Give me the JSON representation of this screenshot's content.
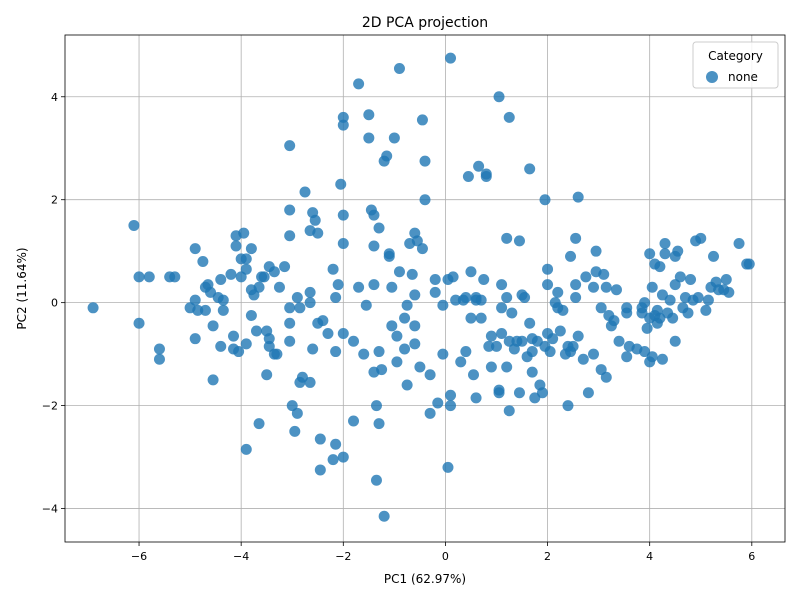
{
  "chart_data": {
    "type": "scatter",
    "title": "2D PCA projection",
    "xlabel": "PC1 (62.97%)",
    "ylabel": "PC2 (11.64%)",
    "xlim": [
      -7.45,
      6.65
    ],
    "ylim": [
      -4.65,
      5.2
    ],
    "xticks": [
      -6,
      -4,
      -2,
      0,
      2,
      4,
      6
    ],
    "yticks": [
      -4,
      -2,
      0,
      2,
      4
    ],
    "grid": true,
    "legend": {
      "title": "Category",
      "position": "top-right"
    },
    "series": [
      {
        "name": "none",
        "color": "#1f77b4",
        "points": [
          [
            -6.9,
            -0.1
          ],
          [
            -6.1,
            1.5
          ],
          [
            -6.0,
            0.5
          ],
          [
            -6.0,
            -0.4
          ],
          [
            -5.8,
            0.5
          ],
          [
            -5.6,
            -0.9
          ],
          [
            -5.6,
            -1.1
          ],
          [
            -5.4,
            0.5
          ],
          [
            -5.3,
            0.5
          ],
          [
            -5.0,
            -0.1
          ],
          [
            -4.9,
            0.05
          ],
          [
            -4.9,
            -0.7
          ],
          [
            -4.9,
            1.05
          ],
          [
            -4.85,
            -0.15
          ],
          [
            -4.75,
            0.8
          ],
          [
            -4.7,
            -0.15
          ],
          [
            -4.7,
            0.3
          ],
          [
            -4.65,
            0.35
          ],
          [
            -4.6,
            0.2
          ],
          [
            -4.55,
            -1.5
          ],
          [
            -4.55,
            -0.45
          ],
          [
            -4.45,
            0.1
          ],
          [
            -4.4,
            0.45
          ],
          [
            -4.35,
            0.05
          ],
          [
            -4.35,
            -0.15
          ],
          [
            -4.4,
            -0.85
          ],
          [
            -4.2,
            0.55
          ],
          [
            -4.15,
            -0.65
          ],
          [
            -4.15,
            -0.9
          ],
          [
            -4.1,
            1.1
          ],
          [
            -4.1,
            1.3
          ],
          [
            -4.05,
            -0.95
          ],
          [
            -4.0,
            0.85
          ],
          [
            -4.0,
            0.5
          ],
          [
            -3.95,
            1.35
          ],
          [
            -3.9,
            0.85
          ],
          [
            -3.9,
            0.65
          ],
          [
            -3.9,
            -0.8
          ],
          [
            -3.9,
            -2.85
          ],
          [
            -3.8,
            -0.25
          ],
          [
            -3.8,
            1.05
          ],
          [
            -3.8,
            0.25
          ],
          [
            -3.75,
            0.15
          ],
          [
            -3.7,
            -0.55
          ],
          [
            -3.65,
            0.3
          ],
          [
            -3.65,
            -2.35
          ],
          [
            -3.6,
            0.5
          ],
          [
            -3.55,
            0.5
          ],
          [
            -3.5,
            -1.4
          ],
          [
            -3.5,
            -0.55
          ],
          [
            -3.45,
            0.7
          ],
          [
            -3.45,
            -0.7
          ],
          [
            -3.45,
            -0.85
          ],
          [
            -3.35,
            -1.0
          ],
          [
            -3.35,
            0.6
          ],
          [
            -3.3,
            -1.0
          ],
          [
            -3.25,
            0.3
          ],
          [
            -3.15,
            0.7
          ],
          [
            -3.05,
            -0.1
          ],
          [
            -3.05,
            -0.4
          ],
          [
            -3.05,
            -0.75
          ],
          [
            -3.05,
            1.3
          ],
          [
            -3.05,
            1.8
          ],
          [
            -3.05,
            3.05
          ],
          [
            -3.0,
            -2.0
          ],
          [
            -2.95,
            -2.5
          ],
          [
            -2.9,
            0.1
          ],
          [
            -2.9,
            -2.15
          ],
          [
            -2.85,
            -0.1
          ],
          [
            -2.85,
            -1.55
          ],
          [
            -2.8,
            -1.45
          ],
          [
            -2.75,
            2.15
          ],
          [
            -2.65,
            -1.55
          ],
          [
            -2.65,
            0.2
          ],
          [
            -2.65,
            0.0
          ],
          [
            -2.65,
            1.4
          ],
          [
            -2.6,
            1.75
          ],
          [
            -2.6,
            -0.9
          ],
          [
            -2.55,
            1.6
          ],
          [
            -2.5,
            1.35
          ],
          [
            -2.5,
            -0.4
          ],
          [
            -2.45,
            -2.65
          ],
          [
            -2.45,
            -3.25
          ],
          [
            -2.4,
            -0.35
          ],
          [
            -2.3,
            -0.6
          ],
          [
            -2.2,
            0.65
          ],
          [
            -2.2,
            -3.05
          ],
          [
            -2.15,
            -2.75
          ],
          [
            -2.15,
            -0.95
          ],
          [
            -2.15,
            0.1
          ],
          [
            -2.1,
            0.35
          ],
          [
            -2.05,
            2.3
          ],
          [
            -2.0,
            3.6
          ],
          [
            -2.0,
            3.45
          ],
          [
            -2.0,
            1.7
          ],
          [
            -2.0,
            1.15
          ],
          [
            -2.0,
            -0.6
          ],
          [
            -2.0,
            -3.0
          ],
          [
            -1.8,
            -0.75
          ],
          [
            -1.8,
            -2.3
          ],
          [
            -1.7,
            4.25
          ],
          [
            -1.7,
            0.3
          ],
          [
            -1.6,
            -1.0
          ],
          [
            -1.55,
            -0.05
          ],
          [
            -1.5,
            3.65
          ],
          [
            -1.5,
            3.2
          ],
          [
            -1.45,
            1.8
          ],
          [
            -1.4,
            1.7
          ],
          [
            -1.4,
            1.1
          ],
          [
            -1.4,
            0.35
          ],
          [
            -1.4,
            -1.35
          ],
          [
            -1.35,
            -2.0
          ],
          [
            -1.35,
            -3.45
          ],
          [
            -1.3,
            -2.35
          ],
          [
            -1.3,
            1.45
          ],
          [
            -1.3,
            -0.95
          ],
          [
            -1.25,
            -1.3
          ],
          [
            -1.2,
            2.75
          ],
          [
            -1.2,
            -4.15
          ],
          [
            -1.15,
            2.85
          ],
          [
            -1.1,
            0.95
          ],
          [
            -1.1,
            0.9
          ],
          [
            -1.05,
            0.3
          ],
          [
            -1.05,
            -0.45
          ],
          [
            -1.0,
            3.2
          ],
          [
            -0.95,
            -1.15
          ],
          [
            -0.95,
            -0.65
          ],
          [
            -0.9,
            0.6
          ],
          [
            -0.9,
            4.55
          ],
          [
            -0.8,
            -0.3
          ],
          [
            -0.8,
            -0.9
          ],
          [
            -0.75,
            -0.05
          ],
          [
            -0.75,
            -1.6
          ],
          [
            -0.7,
            1.15
          ],
          [
            -0.65,
            0.55
          ],
          [
            -0.6,
            -0.45
          ],
          [
            -0.6,
            -0.8
          ],
          [
            -0.6,
            0.15
          ],
          [
            -0.6,
            1.35
          ],
          [
            -0.55,
            1.2
          ],
          [
            -0.5,
            -1.25
          ],
          [
            -0.45,
            1.05
          ],
          [
            -0.45,
            3.55
          ],
          [
            -0.4,
            2.75
          ],
          [
            -0.4,
            2.0
          ],
          [
            -0.3,
            -1.4
          ],
          [
            -0.3,
            -2.15
          ],
          [
            -0.2,
            0.2
          ],
          [
            -0.2,
            0.45
          ],
          [
            -0.15,
            -1.95
          ],
          [
            -0.05,
            -0.05
          ],
          [
            -0.05,
            -1.0
          ],
          [
            0.05,
            -3.2
          ],
          [
            0.05,
            0.45
          ],
          [
            0.1,
            4.75
          ],
          [
            0.1,
            -1.8
          ],
          [
            0.1,
            -2.0
          ],
          [
            0.15,
            0.5
          ],
          [
            0.2,
            0.05
          ],
          [
            0.3,
            -1.15
          ],
          [
            0.35,
            0.05
          ],
          [
            0.4,
            0.1
          ],
          [
            0.4,
            -0.95
          ],
          [
            0.45,
            2.45
          ],
          [
            0.5,
            0.6
          ],
          [
            0.5,
            -0.3
          ],
          [
            0.55,
            -1.4
          ],
          [
            0.6,
            0.1
          ],
          [
            0.6,
            0.05
          ],
          [
            0.6,
            -1.85
          ],
          [
            0.65,
            2.65
          ],
          [
            0.7,
            0.05
          ],
          [
            0.7,
            -0.3
          ],
          [
            0.75,
            0.45
          ],
          [
            0.8,
            2.45
          ],
          [
            0.8,
            2.5
          ],
          [
            0.85,
            -0.85
          ],
          [
            0.9,
            -0.65
          ],
          [
            0.9,
            -1.25
          ],
          [
            1.0,
            -0.85
          ],
          [
            1.05,
            4.0
          ],
          [
            1.05,
            -1.7
          ],
          [
            1.05,
            -1.75
          ],
          [
            1.1,
            0.35
          ],
          [
            1.1,
            -0.1
          ],
          [
            1.1,
            -0.6
          ],
          [
            1.2,
            -1.25
          ],
          [
            1.2,
            1.25
          ],
          [
            1.2,
            0.1
          ],
          [
            1.25,
            3.6
          ],
          [
            1.25,
            -0.75
          ],
          [
            1.25,
            -2.1
          ],
          [
            1.3,
            -0.2
          ],
          [
            1.35,
            -0.9
          ],
          [
            1.4,
            -0.75
          ],
          [
            1.45,
            1.2
          ],
          [
            1.45,
            -1.75
          ],
          [
            1.5,
            -0.75
          ],
          [
            1.5,
            0.15
          ],
          [
            1.55,
            0.1
          ],
          [
            1.6,
            -1.05
          ],
          [
            1.65,
            2.6
          ],
          [
            1.65,
            -0.4
          ],
          [
            1.7,
            -0.7
          ],
          [
            1.7,
            -0.95
          ],
          [
            1.7,
            -1.35
          ],
          [
            1.75,
            -1.85
          ],
          [
            1.8,
            -0.75
          ],
          [
            1.85,
            -1.6
          ],
          [
            1.9,
            -1.75
          ],
          [
            1.95,
            -0.85
          ],
          [
            1.95,
            2.0
          ],
          [
            2.0,
            -0.6
          ],
          [
            2.0,
            0.35
          ],
          [
            2.0,
            0.65
          ],
          [
            2.05,
            -0.95
          ],
          [
            2.1,
            -0.7
          ],
          [
            2.15,
            0.0
          ],
          [
            2.2,
            0.2
          ],
          [
            2.2,
            -0.1
          ],
          [
            2.25,
            -0.55
          ],
          [
            2.3,
            -0.15
          ],
          [
            2.35,
            -1.0
          ],
          [
            2.4,
            -0.85
          ],
          [
            2.4,
            -2.0
          ],
          [
            2.45,
            0.9
          ],
          [
            2.45,
            -0.95
          ],
          [
            2.5,
            -0.85
          ],
          [
            2.55,
            1.25
          ],
          [
            2.55,
            0.35
          ],
          [
            2.55,
            0.1
          ],
          [
            2.6,
            2.05
          ],
          [
            2.6,
            -0.65
          ],
          [
            2.7,
            -1.1
          ],
          [
            2.75,
            0.5
          ],
          [
            2.8,
            -1.75
          ],
          [
            2.9,
            -1.0
          ],
          [
            2.9,
            0.3
          ],
          [
            2.95,
            0.6
          ],
          [
            2.95,
            1.0
          ],
          [
            3.05,
            -1.3
          ],
          [
            3.05,
            -0.1
          ],
          [
            3.1,
            0.55
          ],
          [
            3.15,
            0.3
          ],
          [
            3.15,
            -1.45
          ],
          [
            3.2,
            -0.25
          ],
          [
            3.25,
            -0.45
          ],
          [
            3.3,
            -0.35
          ],
          [
            3.35,
            0.25
          ],
          [
            3.4,
            -0.75
          ],
          [
            3.55,
            -0.2
          ],
          [
            3.55,
            -0.1
          ],
          [
            3.55,
            -1.05
          ],
          [
            3.6,
            -0.85
          ],
          [
            3.75,
            -0.9
          ],
          [
            3.85,
            -0.2
          ],
          [
            3.85,
            -0.1
          ],
          [
            3.9,
            -0.95
          ],
          [
            3.9,
            0.0
          ],
          [
            3.95,
            -0.5
          ],
          [
            4.0,
            -1.15
          ],
          [
            4.0,
            -0.3
          ],
          [
            4.0,
            0.95
          ],
          [
            4.05,
            0.3
          ],
          [
            4.05,
            -1.05
          ],
          [
            4.1,
            0.75
          ],
          [
            4.1,
            -0.25
          ],
          [
            4.15,
            -0.4
          ],
          [
            4.15,
            -0.15
          ],
          [
            4.2,
            -0.3
          ],
          [
            4.2,
            0.7
          ],
          [
            4.25,
            0.15
          ],
          [
            4.25,
            -1.1
          ],
          [
            4.3,
            0.95
          ],
          [
            4.3,
            1.15
          ],
          [
            4.35,
            -0.2
          ],
          [
            4.4,
            0.05
          ],
          [
            4.45,
            -0.3
          ],
          [
            4.5,
            0.35
          ],
          [
            4.5,
            0.9
          ],
          [
            4.5,
            -0.75
          ],
          [
            4.55,
            1.0
          ],
          [
            4.6,
            0.5
          ],
          [
            4.65,
            -0.1
          ],
          [
            4.7,
            0.1
          ],
          [
            4.75,
            -0.2
          ],
          [
            4.8,
            0.45
          ],
          [
            4.85,
            0.05
          ],
          [
            4.9,
            1.2
          ],
          [
            4.95,
            0.1
          ],
          [
            5.0,
            1.25
          ],
          [
            5.1,
            -0.15
          ],
          [
            5.15,
            0.05
          ],
          [
            5.2,
            0.3
          ],
          [
            5.25,
            0.9
          ],
          [
            5.3,
            0.4
          ],
          [
            5.35,
            0.25
          ],
          [
            5.45,
            0.25
          ],
          [
            5.5,
            0.45
          ],
          [
            5.55,
            0.2
          ],
          [
            5.75,
            1.15
          ],
          [
            5.9,
            0.75
          ],
          [
            5.95,
            0.75
          ]
        ]
      }
    ]
  }
}
